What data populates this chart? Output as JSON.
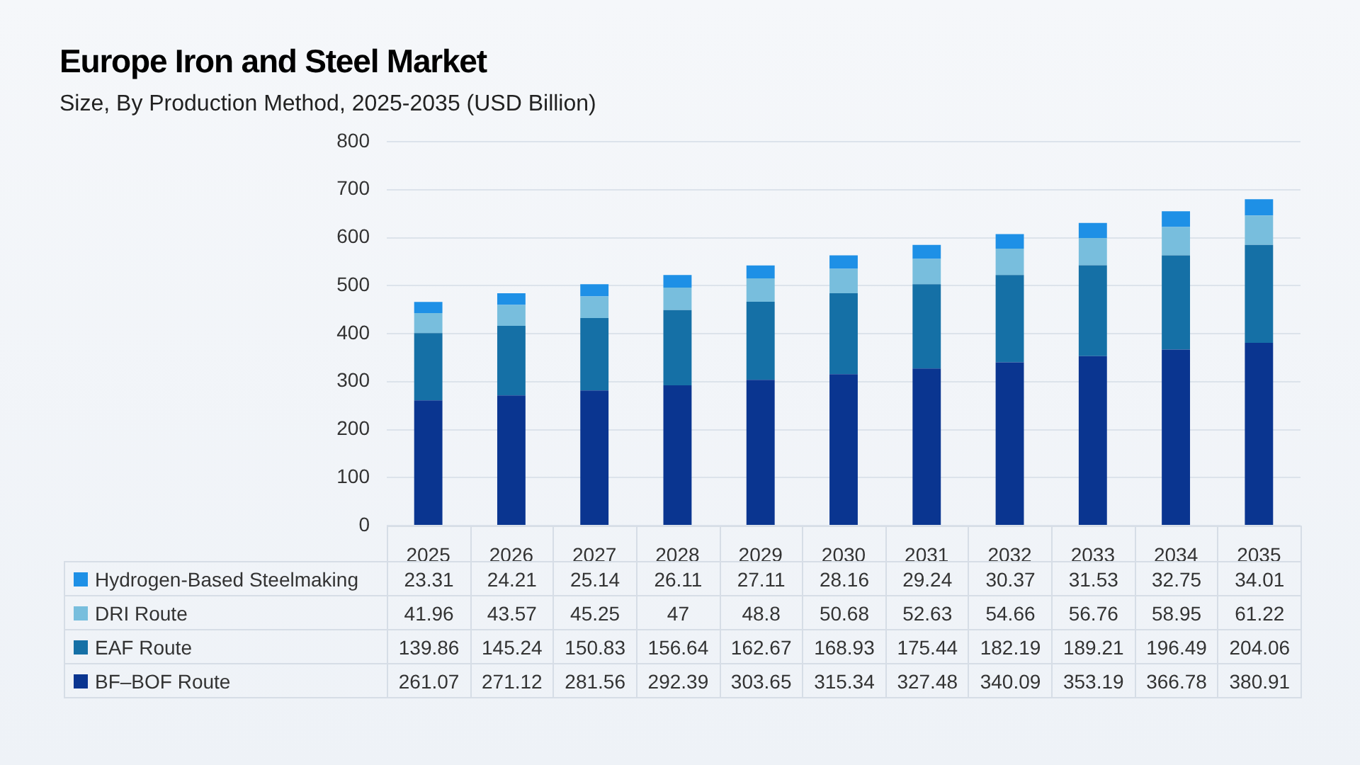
{
  "chart_data": {
    "type": "bar",
    "title": "Europe Iron and Steel Market",
    "subtitle": "Size, By Production Method, 2025-2035 (USD Billion)",
    "categories": [
      "2025",
      "2026",
      "2027",
      "2028",
      "2029",
      "2030",
      "2031",
      "2032",
      "2033",
      "2034",
      "2035"
    ],
    "series": [
      {
        "name": "BF–BOF Route",
        "color": "#0a3590",
        "values": [
          261.07,
          271.12,
          281.56,
          292.39,
          303.65,
          315.34,
          327.48,
          340.09,
          353.19,
          366.78,
          380.91
        ]
      },
      {
        "name": "EAF Route",
        "color": "#1570a6",
        "values": [
          139.86,
          145.24,
          150.83,
          156.64,
          162.67,
          168.93,
          175.44,
          182.19,
          189.21,
          196.49,
          204.06
        ]
      },
      {
        "name": "DRI Route",
        "color": "#78bedd",
        "values": [
          41.96,
          43.57,
          45.25,
          47,
          48.8,
          50.68,
          52.63,
          54.66,
          56.76,
          58.95,
          61.22
        ]
      },
      {
        "name": "Hydrogen-Based Steelmaking",
        "color": "#1e90e6",
        "values": [
          23.31,
          24.21,
          25.14,
          26.11,
          27.11,
          28.16,
          29.24,
          30.37,
          31.53,
          32.75,
          34.01
        ]
      }
    ],
    "stacked": true,
    "ylim": [
      0,
      800
    ],
    "yticks": [
      0,
      100,
      200,
      300,
      400,
      500,
      600,
      700,
      800
    ],
    "grid": "y",
    "legend": "bottom",
    "data_labels": true
  }
}
